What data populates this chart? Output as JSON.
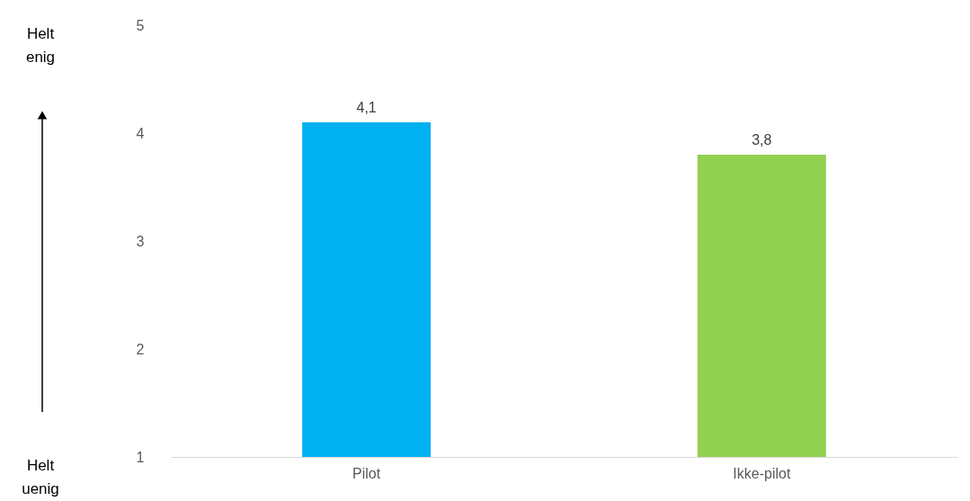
{
  "chart_data": {
    "type": "bar",
    "categories": [
      "Pilot",
      "Ikke-pilot"
    ],
    "values": [
      4.1,
      3.8
    ],
    "colors": [
      "#00b0f0",
      "#92d050"
    ],
    "value_labels": [
      "4,1",
      "3,8"
    ],
    "ylim": [
      1,
      5
    ],
    "yticks": [
      1,
      2,
      3,
      4,
      5
    ],
    "grid": false,
    "annotations": [
      "Helt enig",
      "Helt uenig"
    ]
  }
}
